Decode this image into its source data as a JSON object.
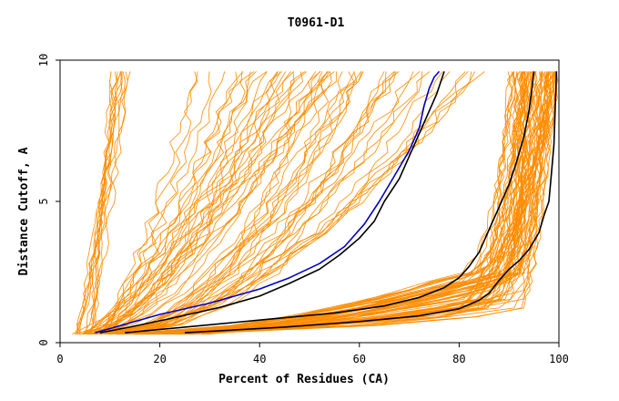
{
  "chart_data": {
    "type": "line",
    "title": "T0961-D1",
    "xlabel": "Percent of Residues (CA)",
    "ylabel": "Distance Cutoff, A",
    "xlim": [
      0,
      100
    ],
    "ylim": [
      0,
      10
    ],
    "x_ticks": [
      0,
      20,
      40,
      60,
      80,
      100
    ],
    "y_ticks": [
      0,
      5,
      10
    ],
    "grid": false,
    "legend": "none",
    "colors": {
      "background_lines": "#ff8c00",
      "highlight_black": "#000000",
      "highlight_blue": "#0000cc"
    },
    "highlight_series": [
      {
        "color": "#0000cc",
        "points": [
          [
            7,
            0.35
          ],
          [
            12,
            0.6
          ],
          [
            20,
            1.0
          ],
          [
            30,
            1.4
          ],
          [
            40,
            1.9
          ],
          [
            46,
            2.3
          ],
          [
            52,
            2.8
          ],
          [
            57,
            3.4
          ],
          [
            61,
            4.2
          ],
          [
            64,
            5.0
          ],
          [
            67,
            5.9
          ],
          [
            70,
            6.8
          ],
          [
            72,
            7.6
          ],
          [
            73,
            8.4
          ],
          [
            74,
            9.0
          ],
          [
            75,
            9.4
          ],
          [
            76,
            9.6
          ]
        ]
      },
      {
        "color": "#000000",
        "points": [
          [
            8,
            0.35
          ],
          [
            14,
            0.55
          ],
          [
            22,
            0.85
          ],
          [
            32,
            1.25
          ],
          [
            40,
            1.65
          ],
          [
            46,
            2.1
          ],
          [
            52,
            2.6
          ],
          [
            56,
            3.1
          ],
          [
            60,
            3.7
          ],
          [
            63,
            4.3
          ],
          [
            65,
            5.0
          ],
          [
            68,
            5.8
          ],
          [
            70,
            6.6
          ],
          [
            72,
            7.4
          ],
          [
            74,
            8.2
          ],
          [
            75.5,
            8.8
          ],
          [
            77,
            9.6
          ]
        ]
      },
      {
        "color": "#000000",
        "points": [
          [
            13,
            0.35
          ],
          [
            25,
            0.55
          ],
          [
            40,
            0.8
          ],
          [
            55,
            1.05
          ],
          [
            65,
            1.3
          ],
          [
            72,
            1.6
          ],
          [
            77,
            1.95
          ],
          [
            80,
            2.3
          ],
          [
            82,
            2.7
          ],
          [
            84,
            3.2
          ],
          [
            85.5,
            3.8
          ],
          [
            87,
            4.4
          ],
          [
            88.5,
            5.0
          ],
          [
            90,
            5.6
          ],
          [
            91.5,
            6.4
          ],
          [
            93,
            7.3
          ],
          [
            94,
            8.2
          ],
          [
            94.5,
            8.9
          ],
          [
            95,
            9.6
          ]
        ]
      },
      {
        "color": "#000000",
        "points": [
          [
            25,
            0.35
          ],
          [
            45,
            0.55
          ],
          [
            60,
            0.75
          ],
          [
            72,
            0.95
          ],
          [
            80,
            1.2
          ],
          [
            84,
            1.5
          ],
          [
            86,
            1.75
          ],
          [
            88,
            2.2
          ],
          [
            90,
            2.6
          ],
          [
            92,
            2.9
          ],
          [
            94,
            3.3
          ],
          [
            96,
            3.9
          ],
          [
            97,
            4.5
          ],
          [
            98,
            5.0
          ],
          [
            98.5,
            6.0
          ],
          [
            99,
            7.0
          ],
          [
            99.2,
            8.0
          ],
          [
            99.4,
            9.0
          ],
          [
            99.5,
            9.6
          ]
        ]
      }
    ]
  }
}
